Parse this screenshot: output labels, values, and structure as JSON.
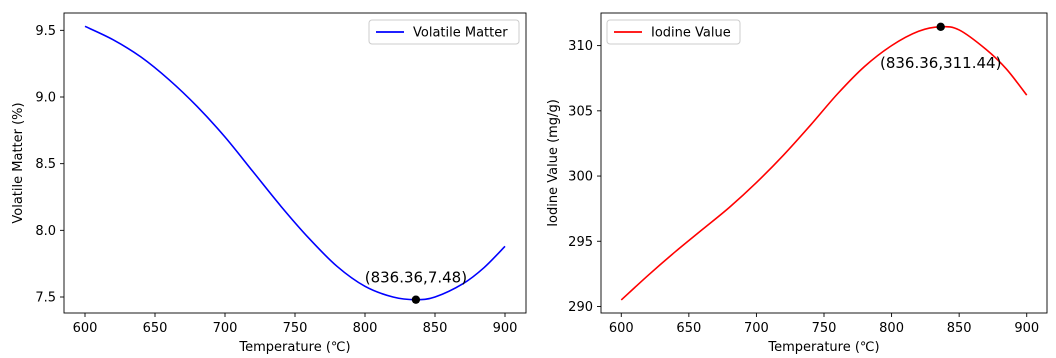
{
  "chart_data": [
    {
      "type": "line",
      "xlabel": "Temperature (℃)",
      "ylabel": "Volatile Matter (%)",
      "xlim": [
        585,
        915
      ],
      "ylim": [
        7.38,
        9.63
      ],
      "xticks": [
        600,
        650,
        700,
        750,
        800,
        850,
        900
      ],
      "yticks": [
        7.5,
        8.0,
        8.5,
        9.0,
        9.5
      ],
      "xtick_labels": [
        "600",
        "650",
        "700",
        "750",
        "800",
        "850",
        "900"
      ],
      "ytick_labels": [
        "7.5",
        "8.0",
        "8.5",
        "9.0",
        "9.5"
      ],
      "legend_position": "top-right",
      "series": [
        {
          "name": "Volatile Matter",
          "color": "#0000ff",
          "x": [
            600,
            620,
            640,
            660,
            680,
            700,
            720,
            740,
            760,
            780,
            800,
            820,
            836.36,
            850,
            870,
            885,
            900
          ],
          "y": [
            9.53,
            9.43,
            9.3,
            9.13,
            8.93,
            8.7,
            8.44,
            8.18,
            7.94,
            7.73,
            7.58,
            7.5,
            7.48,
            7.5,
            7.6,
            7.72,
            7.88
          ]
        }
      ],
      "marker": {
        "x": 836.36,
        "y": 7.48,
        "color": "#000000"
      },
      "annotation": "(836.36,7.48)"
    },
    {
      "type": "line",
      "xlabel": "Temperature (℃)",
      "ylabel": "Iodine Value (mg/g)",
      "xlim": [
        585,
        915
      ],
      "ylim": [
        289.5,
        312.5
      ],
      "xticks": [
        600,
        650,
        700,
        750,
        800,
        850,
        900
      ],
      "yticks": [
        290,
        295,
        300,
        305,
        310
      ],
      "xtick_labels": [
        "600",
        "650",
        "700",
        "750",
        "800",
        "850",
        "900"
      ],
      "ytick_labels": [
        "290",
        "295",
        "300",
        "305",
        "310"
      ],
      "legend_position": "top-left",
      "series": [
        {
          "name": "Iodine Value",
          "color": "#ff0000",
          "x": [
            600,
            620,
            640,
            660,
            680,
            700,
            720,
            740,
            760,
            780,
            800,
            820,
            836.36,
            850,
            870,
            885,
            900
          ],
          "y": [
            290.5,
            292.4,
            294.2,
            295.9,
            297.6,
            299.5,
            301.6,
            303.9,
            306.3,
            308.4,
            310.0,
            311.1,
            311.44,
            311.2,
            309.7,
            308.2,
            306.2
          ]
        }
      ],
      "marker": {
        "x": 836.36,
        "y": 311.44,
        "color": "#000000"
      },
      "annotation": "(836.36,311.44)"
    }
  ]
}
